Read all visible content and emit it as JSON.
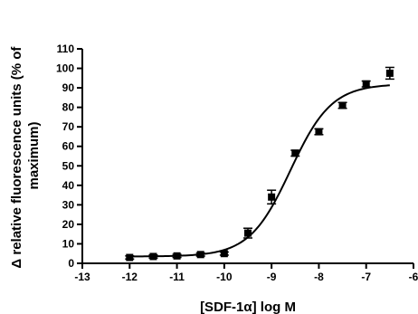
{
  "chart_data": {
    "type": "scatter",
    "xlabel": "[SDF-1α] log M",
    "ylabel_line1": "Δ relative fluorescence units (% of",
    "ylabel_line2": "maximum)",
    "xlim": [
      -13,
      -6
    ],
    "ylim": [
      0,
      110
    ],
    "x_ticks": [
      -13,
      -12,
      -11,
      -10,
      -9,
      -8,
      -7,
      -6
    ],
    "y_ticks": [
      0,
      10,
      20,
      30,
      40,
      50,
      60,
      70,
      80,
      90,
      100,
      110
    ],
    "grid": false,
    "marker": "square",
    "points": [
      {
        "x": -12.0,
        "y": 3.0,
        "err": 0.8
      },
      {
        "x": -11.5,
        "y": 3.5,
        "err": 0.8
      },
      {
        "x": -11.0,
        "y": 3.8,
        "err": 0.8
      },
      {
        "x": -10.5,
        "y": 4.5,
        "err": 0.8
      },
      {
        "x": -10.0,
        "y": 5.0,
        "err": 0.8
      },
      {
        "x": -9.5,
        "y": 15.5,
        "err": 2.5
      },
      {
        "x": -9.0,
        "y": 34.0,
        "err": 3.5
      },
      {
        "x": -8.5,
        "y": 56.5,
        "err": 1.5
      },
      {
        "x": -8.0,
        "y": 67.5,
        "err": 1.5
      },
      {
        "x": -7.5,
        "y": 81.0,
        "err": 1.5
      },
      {
        "x": -7.0,
        "y": 92.0,
        "err": 1.5
      },
      {
        "x": -6.5,
        "y": 97.5,
        "err": 3.0
      }
    ],
    "fit": {
      "model": "sigmoidal dose-response",
      "bottom": 3.5,
      "top": 92,
      "logEC50": -8.6,
      "hill": 1.0,
      "x_range": [
        -12,
        -6.5
      ]
    }
  }
}
